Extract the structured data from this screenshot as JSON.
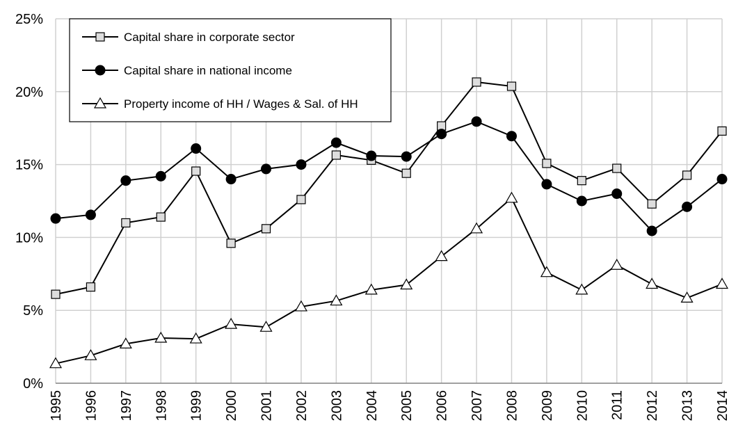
{
  "chart_data": {
    "type": "line",
    "x": [
      "1995",
      "1996",
      "1997",
      "1998",
      "1999",
      "2000",
      "2001",
      "2002",
      "2003",
      "2004",
      "2005",
      "2006",
      "2007",
      "2008",
      "2009",
      "2010",
      "2011",
      "2012",
      "2013",
      "2014"
    ],
    "series": [
      {
        "name": "Capital share in corporate sector",
        "color": "#000000",
        "marker": "square",
        "values": [
          6.1,
          6.6,
          11.0,
          11.4,
          14.55,
          9.6,
          10.6,
          12.6,
          15.65,
          15.3,
          14.4,
          17.65,
          20.66,
          20.37,
          15.08,
          13.9,
          14.74,
          12.3,
          14.27,
          17.3
        ]
      },
      {
        "name": "Capital share in national income",
        "color": "#000000",
        "marker": "circle",
        "values": [
          11.3,
          11.55,
          13.9,
          14.2,
          16.1,
          14.0,
          14.7,
          15.0,
          16.5,
          15.6,
          15.55,
          17.1,
          17.95,
          16.95,
          13.65,
          12.5,
          13.0,
          10.45,
          12.1,
          14.0
        ]
      },
      {
        "name": "Property income of HH / Wages & Sal. of HH",
        "color": "#000000",
        "marker": "triangle",
        "values": [
          1.35,
          1.9,
          2.7,
          3.1,
          3.05,
          4.05,
          3.85,
          5.25,
          5.65,
          6.4,
          6.75,
          8.7,
          10.6,
          12.7,
          7.6,
          6.4,
          8.1,
          6.8,
          5.85,
          6.8
        ]
      }
    ],
    "ylim": [
      0,
      25
    ],
    "yticks": [
      {
        "value": 0,
        "label": "0%"
      },
      {
        "value": 5,
        "label": "5%"
      },
      {
        "value": 10,
        "label": "10%"
      },
      {
        "value": 15,
        "label": "15%"
      },
      {
        "value": 20,
        "label": "20%"
      },
      {
        "value": 25,
        "label": "25%"
      }
    ],
    "grid": true,
    "legend": "upper-left"
  }
}
